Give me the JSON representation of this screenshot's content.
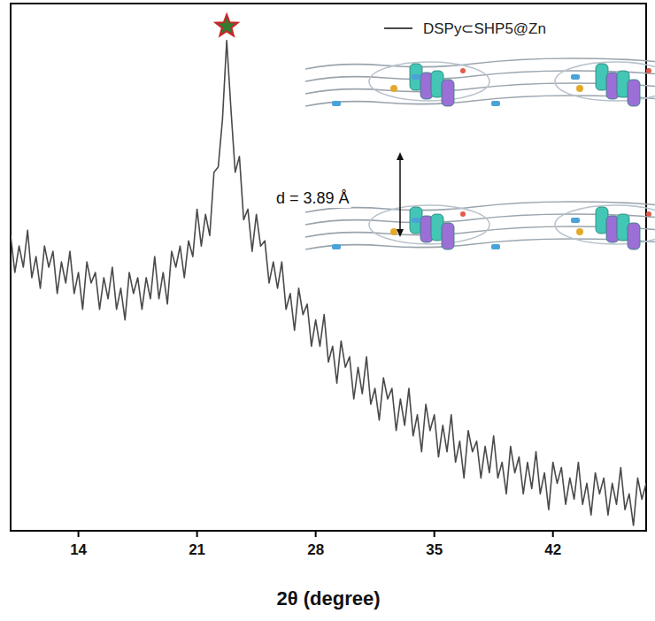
{
  "chart_data": {
    "type": "line",
    "x_label": "2θ (degree)",
    "x": [
      10,
      10.25,
      10.5,
      10.75,
      11,
      11.25,
      11.5,
      11.75,
      12,
      12.25,
      12.5,
      12.75,
      13,
      13.25,
      13.5,
      13.75,
      14,
      14.25,
      14.5,
      14.75,
      15,
      15.25,
      15.5,
      15.75,
      16,
      16.25,
      16.5,
      16.75,
      17,
      17.25,
      17.5,
      17.75,
      18,
      18.25,
      18.5,
      18.75,
      19,
      19.25,
      19.5,
      19.75,
      20,
      20.25,
      20.5,
      20.75,
      21,
      21.25,
      21.5,
      21.75,
      22,
      22.25,
      22.5,
      22.75,
      23,
      23.25,
      23.5,
      23.75,
      24,
      24.25,
      24.5,
      24.75,
      25,
      25.25,
      25.5,
      25.75,
      26,
      26.25,
      26.5,
      26.75,
      27,
      27.25,
      27.5,
      27.75,
      28,
      28.25,
      28.5,
      28.75,
      29,
      29.25,
      29.5,
      29.75,
      30,
      30.25,
      30.5,
      30.75,
      31,
      31.25,
      31.5,
      31.75,
      32,
      32.25,
      32.5,
      32.75,
      33,
      33.25,
      33.5,
      33.75,
      34,
      34.25,
      34.5,
      34.75,
      35,
      35.25,
      35.5,
      35.75,
      36,
      36.25,
      36.5,
      36.75,
      37,
      37.25,
      37.5,
      37.75,
      38,
      38.25,
      38.5,
      38.75,
      39,
      39.25,
      39.5,
      39.75,
      40,
      40.25,
      40.5,
      40.75,
      41,
      41.25,
      41.5,
      41.75,
      42,
      42.25,
      42.5,
      42.75,
      43,
      43.25,
      43.5,
      43.75,
      44,
      44.25,
      44.5,
      44.75,
      45,
      45.25,
      45.5,
      45.75,
      46,
      46.25,
      46.5,
      46.75,
      47,
      47.25,
      47.5
    ],
    "series": [
      {
        "name": "DSPy⊂SHP5@Zn",
        "color": "#4a4a4a",
        "values": [
          56,
          49,
          54,
          50,
          57,
          48,
          52,
          46,
          54,
          50,
          53,
          45,
          51,
          47,
          53,
          45,
          49,
          42,
          51,
          47,
          49,
          42,
          48,
          44,
          50,
          42,
          46,
          40,
          49,
          45,
          48,
          42,
          48,
          44,
          52,
          44,
          49,
          43,
          53,
          50,
          54,
          48,
          55,
          52,
          61,
          54,
          60,
          56,
          68,
          69,
          78,
          93,
          80,
          68,
          71,
          59,
          61,
          53,
          60,
          54,
          55,
          47,
          51,
          46,
          51,
          42,
          45,
          38,
          46,
          41,
          43,
          35,
          40,
          35,
          41,
          32,
          35,
          28,
          36,
          31,
          33,
          25,
          31,
          26,
          33,
          24,
          27,
          21,
          29,
          25,
          27,
          19,
          25,
          20,
          27,
          18,
          22,
          15,
          24,
          19,
          22,
          14,
          20,
          15,
          22,
          13,
          17,
          10,
          19,
          15,
          17,
          10,
          16,
          11,
          18,
          10,
          13,
          7,
          16,
          11,
          14,
          7,
          13,
          8,
          15,
          7,
          11,
          4,
          13,
          9,
          12,
          5,
          10,
          6,
          13,
          5,
          9,
          3,
          11,
          7,
          10,
          3,
          9,
          5,
          12,
          4,
          7,
          1,
          10,
          6,
          9
        ]
      }
    ],
    "xlim": [
      10,
      47.5
    ],
    "xticks": [
      14,
      21,
      28,
      35,
      42
    ],
    "ylim": [
      0,
      100
    ],
    "tick_labels": "x",
    "legend": "upper right",
    "annotations": [
      {
        "text": "d = 3.89 Å"
      }
    ]
  }
}
